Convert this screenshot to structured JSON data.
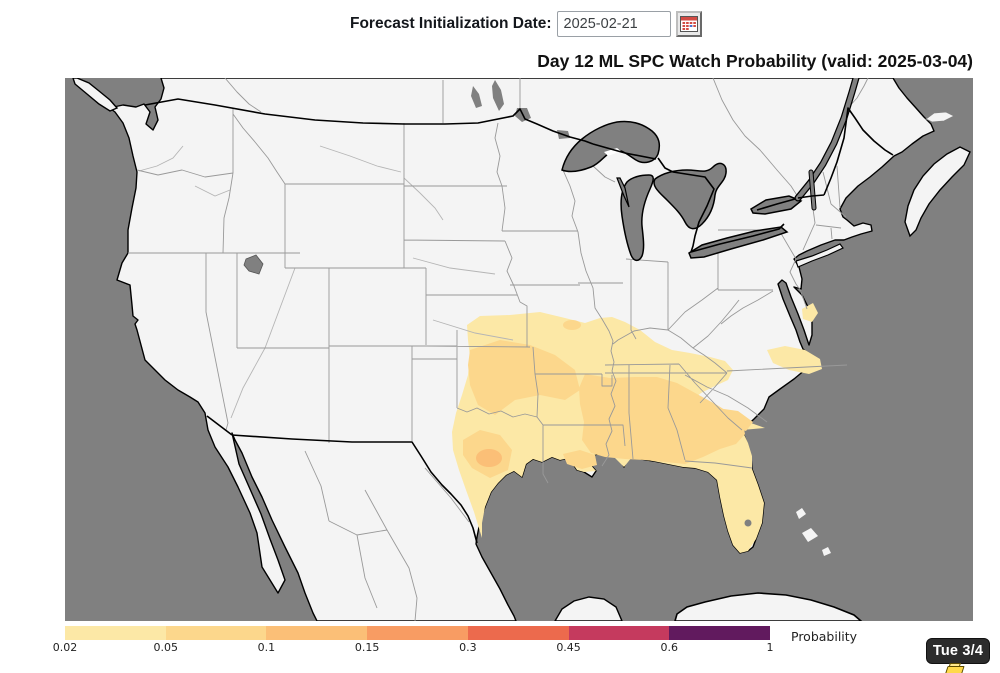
{
  "header": {
    "label": "Forecast Initialization Date:",
    "date_value": "2025-02-21",
    "calendar_icon": "calendar-icon"
  },
  "title": "Day 12 ML SPC Watch Probability (valid: 2025-03-04)",
  "badge": {
    "label": "Tue 3/4"
  },
  "colorbar": {
    "label": "Probability",
    "ticks": [
      "0.02",
      "0.05",
      "0.1",
      "0.15",
      "0.3",
      "0.45",
      "0.6",
      "1"
    ],
    "colors": [
      "#fce8a6",
      "#fcd78c",
      "#fbbf77",
      "#f89c63",
      "#ec6a4d",
      "#c53a5e",
      "#611a5e"
    ]
  },
  "map": {
    "ocean_color": "#808080",
    "land_color": "#f4f4f4",
    "state_border_color": "#999999",
    "coast_border_color": "#000000"
  },
  "chart_data": {
    "type": "choropleth_probability_map",
    "title": "Day 12 ML SPC Watch Probability",
    "valid_date": "2025-03-04",
    "initialization_date": "2025-02-21",
    "forecast_day": 12,
    "region": "Continental United States",
    "colorbar_label": "Probability",
    "probability_levels": [
      0.02,
      0.05,
      0.1,
      0.15,
      0.3,
      0.45,
      0.6,
      1
    ],
    "level_colors": [
      "#fce8a6",
      "#fcd78c",
      "#fbbf77",
      "#f89c63",
      "#ec6a4d",
      "#c53a5e",
      "#611a5e"
    ],
    "shaded_regions": [
      {
        "level": "0.02-0.05",
        "area": "Southern Plains and Southeast: eastern Texas, Oklahoma, southern Kansas and Missouri, Arkansas, Louisiana, Mississippi, Alabama, Georgia, Tennessee, southern Kentucky, all of Florida, South Carolina, coastal North Carolina and Virginia tidewater"
      },
      {
        "level": "0.05-0.1",
        "area": "central and northeast Texas, eastern Oklahoma into Arkansas, Mississippi, Alabama, western and southern Georgia, coastal South Carolina, southern Louisiana"
      },
      {
        "level": "0.1-0.15",
        "area": "small core over central Texas"
      }
    ],
    "max_probability_band": "0.1-0.15",
    "legend_position": "bottom"
  }
}
